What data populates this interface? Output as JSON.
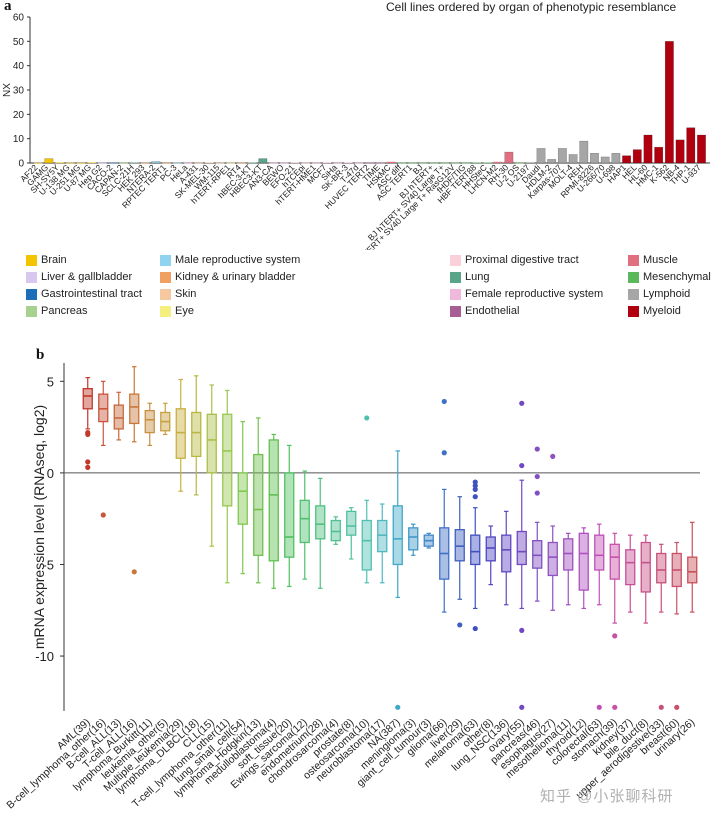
{
  "panel_a_label": "a",
  "panel_b_label": "b",
  "watermark": "知乎 @小张聊科研",
  "legend": [
    {
      "label": "Brain",
      "color": "#f5c400"
    },
    {
      "label": "Liver & gallbladder",
      "color": "#d8c8f0"
    },
    {
      "label": "Gastrointestinal tract",
      "color": "#1a6fb8"
    },
    {
      "label": "Pancreas",
      "color": "#a7d18e"
    },
    {
      "label": "Male reproductive system",
      "color": "#8fd3f0"
    },
    {
      "label": "Kidney & urinary bladder",
      "color": "#f0a060"
    },
    {
      "label": "Skin",
      "color": "#f5c8a0"
    },
    {
      "label": "Eye",
      "color": "#f5ef80"
    },
    {
      "label": "Proximal digestive tract",
      "color": "#fbd0d8"
    },
    {
      "label": "Lung",
      "color": "#5aa58a"
    },
    {
      "label": "Female reproductive system",
      "color": "#f0b8dc"
    },
    {
      "label": "Endothelial",
      "color": "#a85d95"
    },
    {
      "label": "Muscle",
      "color": "#e07080"
    },
    {
      "label": "Mesenchymal",
      "color": "#5cb85c"
    },
    {
      "label": "Lymphoid",
      "color": "#a6a6a6"
    },
    {
      "label": "Myeloid",
      "color": "#b00010"
    }
  ],
  "chart_data": [
    {
      "type": "bar",
      "title": "Cell lines ordered by organ of phenotypic resemblance",
      "xlabel": "",
      "ylabel": "NX",
      "ylim": [
        0,
        60
      ],
      "yticks": [
        0,
        10,
        20,
        30,
        40,
        50,
        60
      ],
      "grid": false,
      "categories": [
        "AF22",
        "GAMG",
        "SH-SY5Y",
        "U-138 MG",
        "U-251 MG",
        "U-87 MG",
        "Hep G2",
        "CACO-2",
        "CAPAN-2",
        "SCLC-21H",
        "HEK 293",
        "NTERA-2",
        "RPTEC TERT1",
        "PC-3",
        "HeLa",
        "A-431",
        "SK-MEL-30",
        "WM-115",
        "hTERT-RPE1",
        "RT4",
        "hBEC-3-KT",
        "HBEC3-KT",
        "AN3-CA",
        "BEWO",
        "EFO-21",
        "hTCEpi",
        "hTERT-HME1",
        "MCF7",
        "SiHa",
        "SK-BR-3",
        "T-47d",
        "HUVEC TERT2",
        "TIME",
        "HSkMC",
        "ASC diff",
        "ASC TERT1",
        "BJ",
        "BJ hTERT+",
        "BJ hTERT+ SV40 Large T+",
        "BJ hTERT+ SV40 Large T+ RasG12V",
        "fHDF/TIG",
        "HBF TERT88",
        "HHSteC",
        "LHCN-M2",
        "RH-30",
        "U-2 OS",
        "U-2197",
        "Daudi",
        "HDLM-2",
        "Karpas-707",
        "MOLT-4",
        "REH",
        "RPMI-8226",
        "U-266/70",
        "U-698",
        "HAP1",
        "HEL",
        "HL-60",
        "HMC-1",
        "K-562",
        "NB-4",
        "THP-1",
        "U-937"
      ],
      "values": [
        0.1,
        1.8,
        0.2,
        0.1,
        0.1,
        0.2,
        0.1,
        0.1,
        0.1,
        0.2,
        0.1,
        0.6,
        0.1,
        0.1,
        0.1,
        0.1,
        0.2,
        0.1,
        0.1,
        0.1,
        0.2,
        1.8,
        0.1,
        0.1,
        0.2,
        0.1,
        0.1,
        0.2,
        0.1,
        0.2,
        0.1,
        0.1,
        0.1,
        0.5,
        0.1,
        0.1,
        0.1,
        0.1,
        0.1,
        0.1,
        0.1,
        0.2,
        0.2,
        0.5,
        4.5,
        0.1,
        0.3,
        6.0,
        1.5,
        6.0,
        3.5,
        9.0,
        4.0,
        2.5,
        4.0,
        3.0,
        5.5,
        11.5,
        6.5,
        50.0,
        9.5,
        14.5,
        11.5
      ],
      "colors": [
        "#f5c400",
        "#f5c400",
        "#f5c400",
        "#f5c400",
        "#f5c400",
        "#f5c400",
        "#d8c8f0",
        "#1a6fb8",
        "#a7d18e",
        "#5aa58a",
        "#f0a060",
        "#8fd3f0",
        "#f0a060",
        "#8fd3f0",
        "#f0b8dc",
        "#f5c8a0",
        "#f5c8a0",
        "#f5c8a0",
        "#f5ef80",
        "#f0a060",
        "#5aa58a",
        "#5aa58a",
        "#f0b8dc",
        "#f0b8dc",
        "#f0b8dc",
        "#fbd0d8",
        "#f0b8dc",
        "#f0b8dc",
        "#f0b8dc",
        "#f0b8dc",
        "#f0b8dc",
        "#a85d95",
        "#a85d95",
        "#e07080",
        "#5cb85c",
        "#5cb85c",
        "#5cb85c",
        "#5cb85c",
        "#5cb85c",
        "#5cb85c",
        "#5cb85c",
        "#5cb85c",
        "#5cb85c",
        "#e07080",
        "#e07080",
        "#5cb85c",
        "#a6a6a6",
        "#a6a6a6",
        "#a6a6a6",
        "#a6a6a6",
        "#a6a6a6",
        "#a6a6a6",
        "#a6a6a6",
        "#a6a6a6",
        "#a6a6a6",
        "#b00010",
        "#b00010",
        "#b00010",
        "#b00010",
        "#b00010",
        "#b00010",
        "#b00010",
        "#b00010"
      ]
    },
    {
      "type": "box",
      "title": "",
      "xlabel": "",
      "ylabel": "mRNA expression level (RNAseq, log2)",
      "ylim": [
        -13,
        6
      ],
      "yticks": [
        5,
        0,
        -5,
        -10
      ],
      "reference_line": 0,
      "categories": [
        "AML(39)",
        "B-cell_lymphoma_other(16)",
        "B-cell_ALL(13)",
        "T-cell_ALL(16)",
        "lymphoma_Burkitt(11)",
        "leukemia_other(5)",
        "Multiple_leukemia(29)",
        "lymphoma_DLBCL(18)",
        "CLL(15)",
        "T-cell_lymphoma_other(11)",
        "lung_small_cell(54)",
        "lymphoma_Hodgkin(13)",
        "medulloblastoma(4)",
        "soft_tissue(20)",
        "Ewings_sarcoma(12)",
        "endometrium(28)",
        "chondrosarcoma(4)",
        "prostate(8)",
        "osteosarcoma(10)",
        "neuroblastoma(17)",
        "NA(387)",
        "meningioma(3)",
        "giant_cell_tumour(3)",
        "glioma(66)",
        "liver(29)",
        "melanoma(63)",
        "other(8)",
        "lung_NSC(136)",
        "ovary(55)",
        "pancreas(46)",
        "esophagus(27)",
        "mesothelioma(11)",
        "thyroid(12)",
        "colorectal(63)",
        "stomach(39)",
        "kidney(37)",
        "bile_duct(8)",
        "upper_aerodigestive(33)",
        "breast(60)",
        "urinary(26)"
      ],
      "colors": [
        "#c0392b",
        "#c8553c",
        "#c8683a",
        "#c8783a",
        "#c89040",
        "#c8a040",
        "#c8b040",
        "#b8b840",
        "#a8c048",
        "#98c850",
        "#80c850",
        "#70c050",
        "#60c050",
        "#50c060",
        "#50c070",
        "#50c080",
        "#50c090",
        "#50c0a0",
        "#50c0b0",
        "#50b8c0",
        "#40a8c8",
        "#4098c8",
        "#4088c8",
        "#4070c8",
        "#4060c0",
        "#4050c0",
        "#5048c0",
        "#6048c0",
        "#7048c0",
        "#8050c0",
        "#9050c0",
        "#a050c0",
        "#b050c0",
        "#c050b8",
        "#c850a8",
        "#c85098",
        "#c85088",
        "#c85078",
        "#c85068",
        "#c85058"
      ],
      "boxes": [
        {
          "q1": 3.5,
          "median": 4.2,
          "q3": 4.6,
          "whisker_low": 2.4,
          "whisker_high": 5.2,
          "outliers": [
            2.1,
            2.2,
            0.6,
            0.3
          ]
        },
        {
          "q1": 2.8,
          "median": 3.5,
          "q3": 4.3,
          "whisker_low": 1.5,
          "whisker_high": 5.0,
          "outliers": [
            -2.3
          ]
        },
        {
          "q1": 2.4,
          "median": 3.0,
          "q3": 3.7,
          "whisker_low": 1.8,
          "whisker_high": 4.4,
          "outliers": []
        },
        {
          "q1": 2.7,
          "median": 3.6,
          "q3": 4.3,
          "whisker_low": 1.7,
          "whisker_high": 5.8,
          "outliers": [
            -5.4
          ]
        },
        {
          "q1": 2.2,
          "median": 2.9,
          "q3": 3.4,
          "whisker_low": 1.5,
          "whisker_high": 3.8,
          "outliers": []
        },
        {
          "q1": 2.3,
          "median": 2.8,
          "q3": 3.3,
          "whisker_low": 2.1,
          "whisker_high": 3.8,
          "outliers": []
        },
        {
          "q1": 0.8,
          "median": 2.2,
          "q3": 3.5,
          "whisker_low": -1.0,
          "whisker_high": 5.1,
          "outliers": []
        },
        {
          "q1": 0.9,
          "median": 2.2,
          "q3": 3.3,
          "whisker_low": -1.2,
          "whisker_high": 5.3,
          "outliers": []
        },
        {
          "q1": 0.0,
          "median": 1.8,
          "q3": 3.2,
          "whisker_low": -4.0,
          "whisker_high": 4.8,
          "outliers": []
        },
        {
          "q1": -1.8,
          "median": 1.2,
          "q3": 3.2,
          "whisker_low": -6.0,
          "whisker_high": 4.5,
          "outliers": []
        },
        {
          "q1": -2.8,
          "median": -1.0,
          "q3": 0.0,
          "whisker_low": -5.5,
          "whisker_high": 2.8,
          "outliers": []
        },
        {
          "q1": -4.5,
          "median": -2.0,
          "q3": 1.0,
          "whisker_low": -6.0,
          "whisker_high": 3.0,
          "outliers": []
        },
        {
          "q1": -4.8,
          "median": -1.2,
          "q3": 1.8,
          "whisker_low": -6.3,
          "whisker_high": 2.1,
          "outliers": []
        },
        {
          "q1": -4.6,
          "median": -3.5,
          "q3": 0.0,
          "whisker_low": -6.2,
          "whisker_high": 1.5,
          "outliers": []
        },
        {
          "q1": -3.8,
          "median": -2.5,
          "q3": -1.5,
          "whisker_low": -5.8,
          "whisker_high": 0.1,
          "outliers": []
        },
        {
          "q1": -3.6,
          "median": -2.8,
          "q3": -1.8,
          "whisker_low": -6.3,
          "whisker_high": -0.3,
          "outliers": []
        },
        {
          "q1": -3.7,
          "median": -3.2,
          "q3": -2.6,
          "whisker_low": -3.9,
          "whisker_high": -2.4,
          "outliers": []
        },
        {
          "q1": -3.4,
          "median": -2.9,
          "q3": -2.1,
          "whisker_low": -4.7,
          "whisker_high": -1.9,
          "outliers": []
        },
        {
          "q1": -5.3,
          "median": -3.7,
          "q3": -2.6,
          "whisker_low": -6.0,
          "whisker_high": -1.5,
          "outliers": [
            3.0
          ]
        },
        {
          "q1": -4.3,
          "median": -3.4,
          "q3": -2.6,
          "whisker_low": -6.0,
          "whisker_high": -1.7,
          "outliers": []
        },
        {
          "q1": -5.0,
          "median": -3.6,
          "q3": -1.8,
          "whisker_low": -6.8,
          "whisker_high": 1.2,
          "outliers": [
            -12.8
          ]
        },
        {
          "q1": -4.2,
          "median": -3.5,
          "q3": -3.0,
          "whisker_low": -4.5,
          "whisker_high": -2.8,
          "outliers": []
        },
        {
          "q1": -4.0,
          "median": -3.7,
          "q3": -3.4,
          "whisker_low": -4.1,
          "whisker_high": -3.3,
          "outliers": []
        },
        {
          "q1": -5.8,
          "median": -4.4,
          "q3": -3.0,
          "whisker_low": -7.6,
          "whisker_high": -0.9,
          "outliers": [
            3.9,
            1.1
          ]
        },
        {
          "q1": -4.8,
          "median": -4.0,
          "q3": -3.1,
          "whisker_low": -6.9,
          "whisker_high": -1.3,
          "outliers": [
            -8.3
          ]
        },
        {
          "q1": -5.0,
          "median": -4.3,
          "q3": -3.4,
          "whisker_low": -7.4,
          "whisker_high": -1.9,
          "outliers": [
            -0.5,
            -0.7,
            -0.9,
            -1.3,
            -8.5
          ]
        },
        {
          "q1": -4.8,
          "median": -4.1,
          "q3": -3.5,
          "whisker_low": -6.1,
          "whisker_high": -2.9,
          "outliers": []
        },
        {
          "q1": -5.4,
          "median": -4.2,
          "q3": -3.4,
          "whisker_low": -7.2,
          "whisker_high": -2.1,
          "outliers": []
        },
        {
          "q1": -5.0,
          "median": -4.3,
          "q3": -3.2,
          "whisker_low": -7.4,
          "whisker_high": -0.4,
          "outliers": [
            3.8,
            0.4,
            -8.6,
            -12.8
          ]
        },
        {
          "q1": -5.2,
          "median": -4.5,
          "q3": -3.7,
          "whisker_low": -7.0,
          "whisker_high": -2.7,
          "outliers": [
            1.3,
            -0.2,
            -1.1
          ]
        },
        {
          "q1": -5.6,
          "median": -4.6,
          "q3": -3.8,
          "whisker_low": -7.5,
          "whisker_high": -2.9,
          "outliers": [
            0.9
          ]
        },
        {
          "q1": -5.3,
          "median": -4.4,
          "q3": -3.6,
          "whisker_low": -7.2,
          "whisker_high": -3.3,
          "outliers": []
        },
        {
          "q1": -6.4,
          "median": -4.4,
          "q3": -3.3,
          "whisker_low": -7.4,
          "whisker_high": -3.0,
          "outliers": []
        },
        {
          "q1": -5.3,
          "median": -4.5,
          "q3": -3.4,
          "whisker_low": -7.2,
          "whisker_high": -2.8,
          "outliers": [
            -12.8
          ]
        },
        {
          "q1": -5.8,
          "median": -4.6,
          "q3": -3.9,
          "whisker_low": -8.2,
          "whisker_high": -3.3,
          "outliers": [
            -8.9,
            -12.8
          ]
        },
        {
          "q1": -6.1,
          "median": -4.9,
          "q3": -4.2,
          "whisker_low": -7.6,
          "whisker_high": -3.4,
          "outliers": []
        },
        {
          "q1": -6.5,
          "median": -4.9,
          "q3": -3.8,
          "whisker_low": -8.2,
          "whisker_high": -3.4,
          "outliers": []
        },
        {
          "q1": -6.0,
          "median": -5.3,
          "q3": -4.4,
          "whisker_low": -7.6,
          "whisker_high": -3.9,
          "outliers": [
            -12.8
          ]
        },
        {
          "q1": -6.2,
          "median": -5.3,
          "q3": -4.4,
          "whisker_low": -7.7,
          "whisker_high": -3.8,
          "outliers": [
            -12.8
          ]
        },
        {
          "q1": -6.0,
          "median": -5.4,
          "q3": -4.6,
          "whisker_low": -7.6,
          "whisker_high": -2.7,
          "outliers": []
        }
      ]
    }
  ]
}
